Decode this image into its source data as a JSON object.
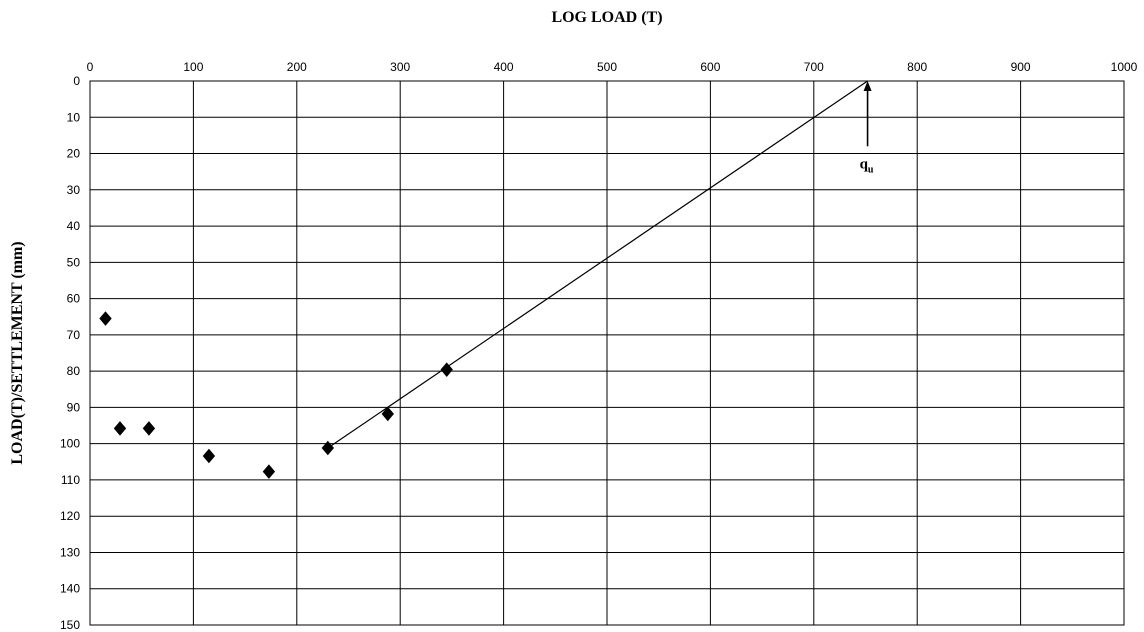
{
  "chart_data": {
    "type": "scatter",
    "title": "",
    "xlabel": "LOG LOAD (T)",
    "ylabel": "LOAD(T)/SETTLEMENT (mm)",
    "xlim": [
      0,
      1000
    ],
    "ylim": [
      0,
      150
    ],
    "y_inverted": true,
    "x_axis_position": "top",
    "grid": true,
    "x_ticks": [
      "0",
      "100",
      "200",
      "300",
      "400",
      "500",
      "600",
      "700",
      "800",
      "900",
      "1000"
    ],
    "y_ticks": [
      "0",
      "10",
      "20",
      "30",
      "40",
      "50",
      "60",
      "70",
      "80",
      "90",
      "100",
      "110",
      "120",
      "130",
      "140",
      "150"
    ],
    "series": [
      {
        "marker": "diamond",
        "color": "#000000",
        "x": [
          15,
          29,
          57,
          115,
          173,
          230,
          288,
          345
        ],
        "y": [
          65.5,
          95.8,
          95.8,
          103.4,
          107.7,
          101.2,
          91.8,
          79.6
        ]
      }
    ],
    "lines": [
      {
        "x": [
          230,
          752
        ],
        "y": [
          101.2,
          0
        ]
      }
    ],
    "annotation": {
      "text": "q",
      "subscript": "u",
      "x": 752,
      "arrow_from_y": 18,
      "arrow_to_y": 0
    }
  }
}
